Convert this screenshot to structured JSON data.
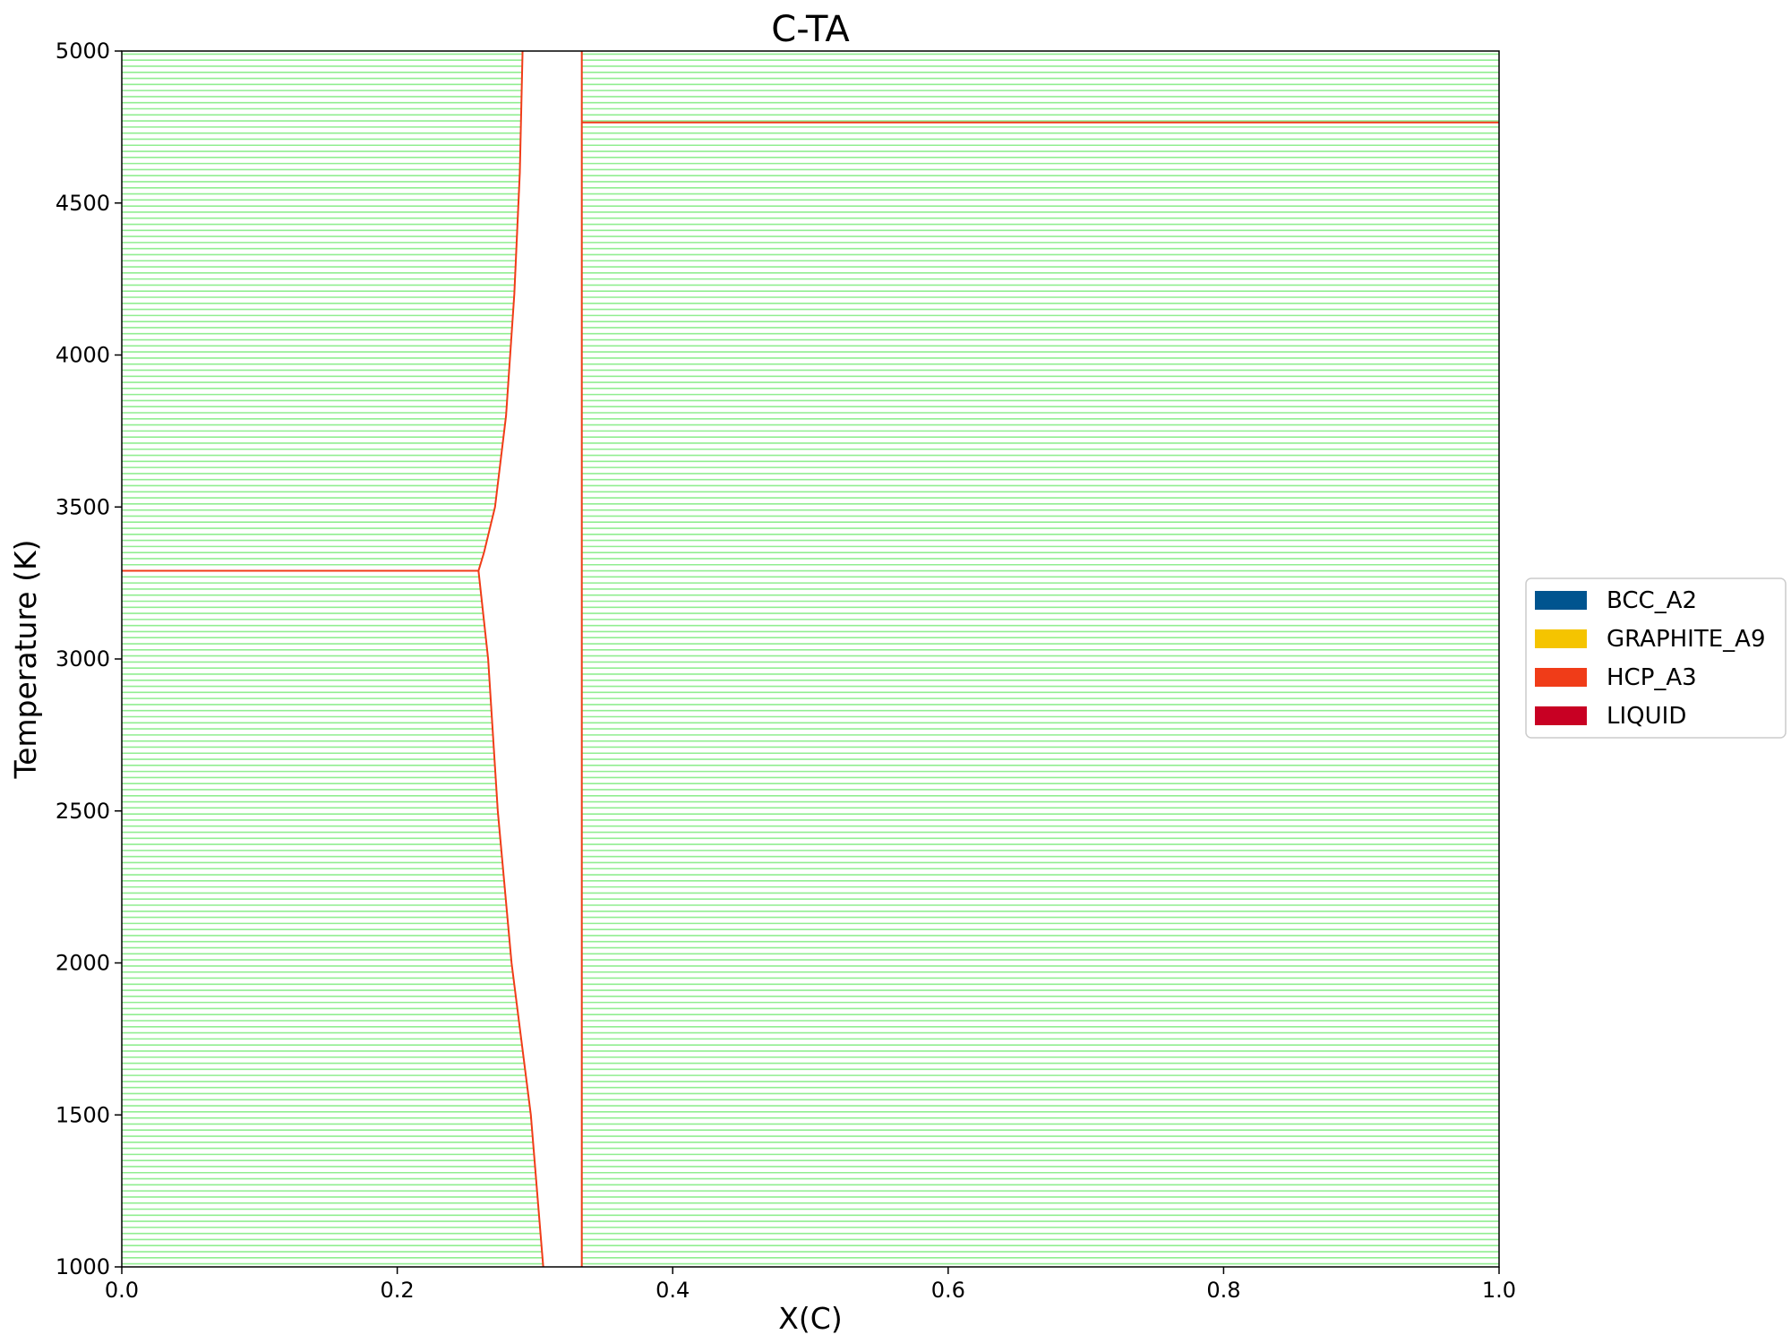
{
  "chart_data": {
    "type": "line",
    "title": "C-TA",
    "xlabel": "X(C)",
    "ylabel": "Temperature (K)",
    "xlim": [
      0.0,
      1.0
    ],
    "ylim": [
      1000,
      5000
    ],
    "x_ticks": [
      "0.0",
      "0.2",
      "0.4",
      "0.6",
      "0.8",
      "1.0"
    ],
    "y_ticks": [
      "1000",
      "1500",
      "2000",
      "2500",
      "3000",
      "3500",
      "4000",
      "4500",
      "5000"
    ],
    "grid": false,
    "legend_position": "center-right outside",
    "legend": [
      {
        "label": "BCC_A2",
        "color": "#00548f"
      },
      {
        "label": "GRAPHITE_A9",
        "color": "#f5c400"
      },
      {
        "label": "HCP_A3",
        "color": "#f03c18"
      },
      {
        "label": "LIQUID",
        "color": "#c80023"
      }
    ],
    "tieline_color": "#90ee90",
    "boundary_color": "#f03c18",
    "tieline_spacing_K": 20,
    "two_phase_regions": [
      {
        "name": "left",
        "left_boundary": [
          {
            "x": 0.0,
            "y": 1000
          },
          {
            "x": 0.0,
            "y": 5000
          }
        ],
        "right_boundary": [
          {
            "x": 0.306,
            "y": 1000
          },
          {
            "x": 0.297,
            "y": 1500
          },
          {
            "x": 0.283,
            "y": 2000
          },
          {
            "x": 0.273,
            "y": 2500
          },
          {
            "x": 0.266,
            "y": 3000
          },
          {
            "x": 0.259,
            "y": 3290
          },
          {
            "x": 0.263,
            "y": 3350
          },
          {
            "x": 0.271,
            "y": 3500
          },
          {
            "x": 0.279,
            "y": 3800
          },
          {
            "x": 0.285,
            "y": 4200
          },
          {
            "x": 0.289,
            "y": 4600
          },
          {
            "x": 0.291,
            "y": 5000
          }
        ]
      },
      {
        "name": "right",
        "left_boundary": [
          {
            "x": 0.334,
            "y": 1000
          },
          {
            "x": 0.334,
            "y": 5000
          }
        ],
        "right_boundary": [
          {
            "x": 1.0,
            "y": 1000
          },
          {
            "x": 1.0,
            "y": 5000
          }
        ]
      }
    ],
    "horizontal_lines": [
      {
        "y": 3290,
        "x_start": 0.0,
        "x_end": 0.259
      },
      {
        "y": 4765,
        "x_start": 0.334,
        "x_end": 1.0
      }
    ]
  }
}
